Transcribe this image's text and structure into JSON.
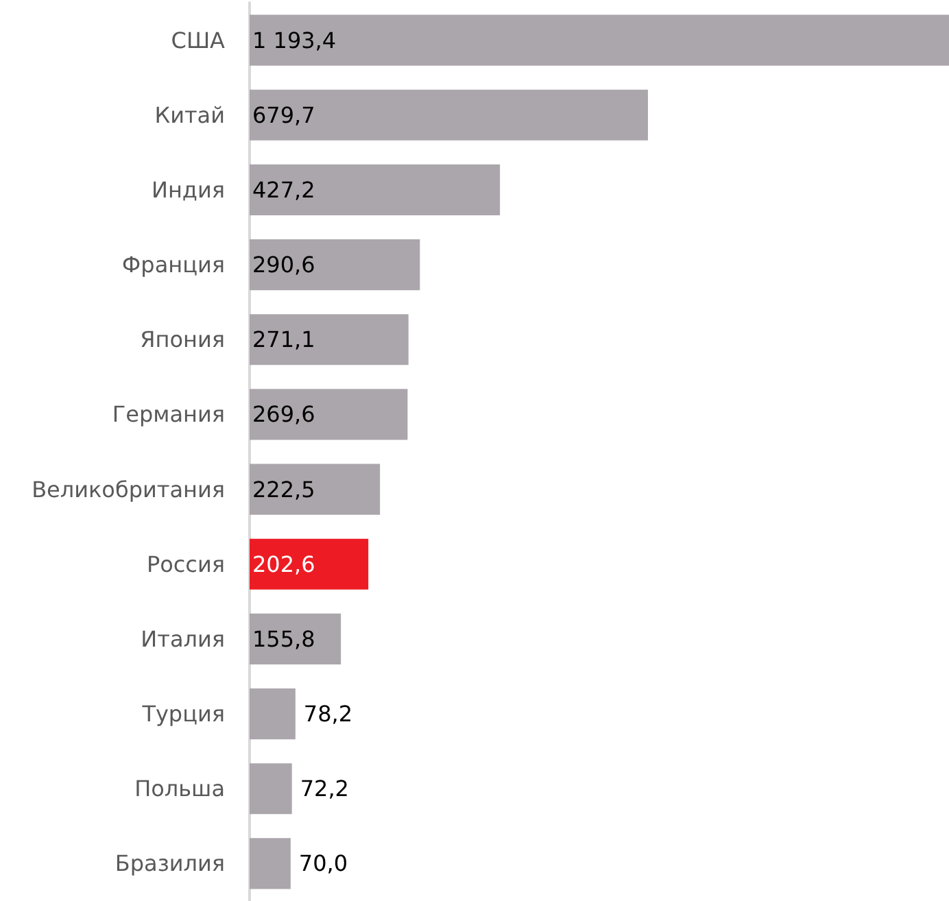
{
  "chart_data": {
    "type": "bar",
    "orientation": "horizontal",
    "categories": [
      "США",
      "Китай",
      "Индия",
      "Франция",
      "Япония",
      "Германия",
      "Великобритания",
      "Россия",
      "Италия",
      "Турция",
      "Польша",
      "Бразилия"
    ],
    "values": [
      1193.4,
      679.7,
      427.2,
      290.6,
      271.1,
      269.6,
      222.5,
      202.6,
      155.8,
      78.2,
      72.2,
      70.0
    ],
    "colors": [
      "#aba6ab",
      "#aba6ab",
      "#aba6ab",
      "#aba6ab",
      "#aba6ab",
      "#aba6ab",
      "#aba6ab",
      "#ed1c24",
      "#aba6ab",
      "#aba6ab",
      "#aba6ab",
      "#aba6ab"
    ],
    "value_labels": [
      "1 193,4",
      "679,7",
      "427,2",
      "290,6",
      "271,1",
      "269,6",
      "222,5",
      "202,6",
      "155,8",
      "78,2",
      "72,2",
      "70,0"
    ]
  }
}
